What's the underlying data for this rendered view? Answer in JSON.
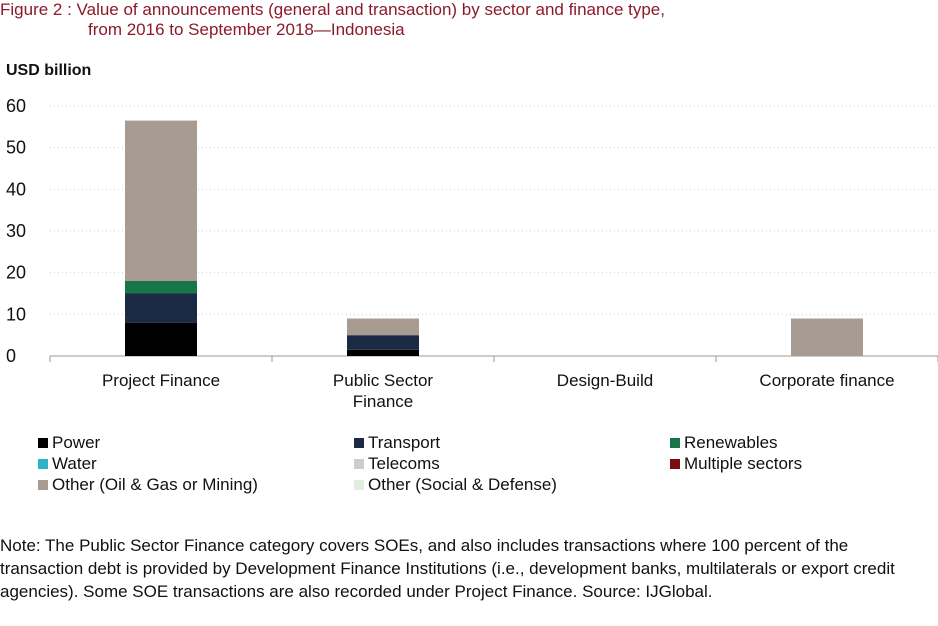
{
  "header": {
    "title_line1": "Figure 2 : Value of announcements (general and transaction) by sector and finance type,",
    "title_line2": "from 2016 to September 2018—Indonesia"
  },
  "chart_data": {
    "type": "bar",
    "stacked": true,
    "ylabel": "USD billion",
    "ylim": [
      0,
      60
    ],
    "yticks": [
      0,
      10,
      20,
      30,
      40,
      50,
      60
    ],
    "grid": true,
    "categories": [
      "Project Finance",
      "Public Sector Finance",
      "Design-Build",
      "Corporate finance"
    ],
    "category_lines": [
      [
        "Project Finance"
      ],
      [
        "Public Sector",
        "Finance"
      ],
      [
        "Design-Build"
      ],
      [
        "Corporate finance"
      ]
    ],
    "series": [
      {
        "name": "Power",
        "color": "#000000",
        "values": [
          8,
          1.5,
          0,
          0
        ]
      },
      {
        "name": "Transport",
        "color": "#1c2b45",
        "values": [
          7,
          3.5,
          0,
          0
        ]
      },
      {
        "name": "Renewables",
        "color": "#17754a",
        "values": [
          3,
          0,
          0,
          0
        ]
      },
      {
        "name": "Water",
        "color": "#2bb3c8",
        "values": [
          0,
          0,
          0,
          0
        ]
      },
      {
        "name": "Telecoms",
        "color": "#cccccc",
        "values": [
          0,
          0,
          0,
          0
        ]
      },
      {
        "name": "Multiple sectors",
        "color": "#7a0c12",
        "values": [
          0,
          0,
          0,
          0
        ]
      },
      {
        "name": "Other (Oil & Gas or Mining)",
        "color": "#a89b92",
        "values": [
          38.5,
          4,
          0,
          9
        ]
      },
      {
        "name": "Other (Social & Defense)",
        "color": "#dfeedd",
        "values": [
          0,
          0,
          0,
          0
        ]
      }
    ],
    "legend_position": "bottom"
  },
  "note": "Note: The Public Sector Finance category covers SOEs, and also includes transactions where 100 percent of the transaction debt is provided by Development Finance Institutions (i.e., development banks, multilaterals or export credit agencies). Some SOE transactions are also recorded under Project Finance. Source: IJGlobal."
}
